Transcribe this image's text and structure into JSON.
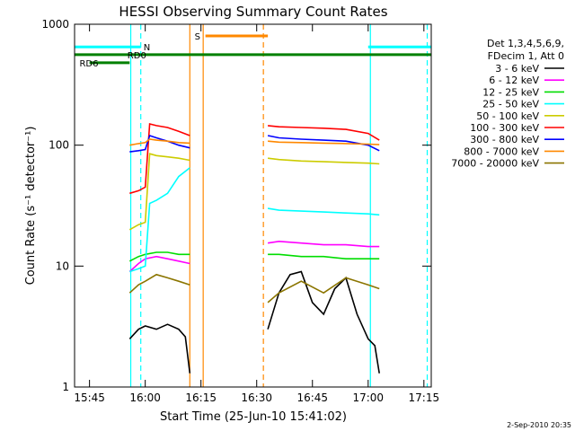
{
  "chart_data": {
    "type": "line",
    "title": "HESSI Observing Summary Count Rates",
    "xlabel": "Start Time (25-Jun-10 15:41:02)",
    "ylabel": "Count Rate (s⁻¹ detector⁻¹)",
    "yscale": "log",
    "ylim": [
      1,
      1000
    ],
    "xlim_minutes": [
      15.683,
      17.283
    ],
    "x_unit": "decimal hours UT",
    "x_ticks": [
      {
        "label": "15:45",
        "value": 15.75
      },
      {
        "label": "16:00",
        "value": 16.0
      },
      {
        "label": "16:15",
        "value": 16.25
      },
      {
        "label": "16:30",
        "value": 16.5
      },
      {
        "label": "16:45",
        "value": 16.75
      },
      {
        "label": "17:00",
        "value": 17.0
      },
      {
        "label": "17:15",
        "value": 17.25
      }
    ],
    "y_ticks": [
      {
        "label": "1",
        "value": 1
      },
      {
        "label": "10",
        "value": 10
      },
      {
        "label": "100",
        "value": 100
      },
      {
        "label": "1000",
        "value": 1000
      }
    ],
    "legend_header": [
      "Det 1,3,4,5,6,9,",
      "FDecim 1, Att 0"
    ],
    "legend_position": "right",
    "date_stamp": "2-Sep-2010 20:35",
    "series": [
      {
        "name": "3 - 6 keV",
        "color": "#000000",
        "segments": [
          {
            "x": [
              15.93,
              15.97,
              16.0,
              16.05,
              16.1,
              16.15,
              16.18,
              16.2
            ],
            "y": [
              2.5,
              3.0,
              3.2,
              3.0,
              3.3,
              3.0,
              2.6,
              1.3
            ]
          },
          {
            "x": [
              16.55,
              16.6,
              16.65,
              16.7,
              16.75,
              16.8,
              16.85,
              16.9,
              16.95,
              17.0,
              17.03,
              17.05
            ],
            "y": [
              3.0,
              6.0,
              8.5,
              9.0,
              5.0,
              4.0,
              6.5,
              8.0,
              4.0,
              2.5,
              2.2,
              1.3
            ]
          }
        ]
      },
      {
        "name": "6 - 12 keV",
        "color": "#ff00ff",
        "segments": [
          {
            "x": [
              15.93,
              15.97,
              16.0,
              16.05,
              16.1,
              16.15,
              16.2
            ],
            "y": [
              9.0,
              10.5,
              11.5,
              12.0,
              11.5,
              11.0,
              10.5
            ]
          },
          {
            "x": [
              16.55,
              16.6,
              16.7,
              16.8,
              16.9,
              17.0,
              17.05
            ],
            "y": [
              15.5,
              16.0,
              15.5,
              15.0,
              15.0,
              14.5,
              14.5
            ]
          }
        ]
      },
      {
        "name": "12 - 25 keV",
        "color": "#00dd00",
        "segments": [
          {
            "x": [
              15.93,
              15.97,
              16.0,
              16.05,
              16.1,
              16.15,
              16.2
            ],
            "y": [
              11.0,
              12.0,
              12.5,
              13.0,
              13.0,
              12.5,
              12.5
            ]
          },
          {
            "x": [
              16.55,
              16.6,
              16.7,
              16.8,
              16.9,
              17.0,
              17.05
            ],
            "y": [
              12.5,
              12.5,
              12.0,
              12.0,
              11.5,
              11.5,
              11.5
            ]
          }
        ]
      },
      {
        "name": "25 - 50 keV",
        "color": "#00ffff",
        "segments": [
          {
            "x": [
              15.93,
              15.97,
              16.0,
              16.02,
              16.05,
              16.1,
              16.15,
              16.2
            ],
            "y": [
              9.0,
              9.5,
              10.0,
              33.0,
              35.0,
              40.0,
              55.0,
              65.0
            ]
          },
          {
            "x": [
              16.55,
              16.6,
              16.7,
              16.8,
              16.9,
              17.0,
              17.05
            ],
            "y": [
              30.0,
              29.0,
              28.5,
              28.0,
              27.5,
              27.0,
              26.5
            ]
          }
        ]
      },
      {
        "name": "50 - 100 keV",
        "color": "#cccc00",
        "segments": [
          {
            "x": [
              15.93,
              15.97,
              16.0,
              16.02,
              16.05,
              16.1,
              16.15,
              16.2
            ],
            "y": [
              20.0,
              22.0,
              23.0,
              85.0,
              82.0,
              80.0,
              78.0,
              75.0
            ]
          },
          {
            "x": [
              16.55,
              16.6,
              16.7,
              16.8,
              16.9,
              17.0,
              17.05
            ],
            "y": [
              78.0,
              76.0,
              74.0,
              73.0,
              72.0,
              71.0,
              70.0
            ]
          }
        ]
      },
      {
        "name": "100 - 300 keV",
        "color": "#ff0000",
        "segments": [
          {
            "x": [
              15.93,
              15.97,
              16.0,
              16.02,
              16.05,
              16.1,
              16.15,
              16.2
            ],
            "y": [
              40.0,
              42.0,
              45.0,
              150.0,
              145.0,
              140.0,
              130.0,
              120.0
            ]
          },
          {
            "x": [
              16.55,
              16.6,
              16.7,
              16.8,
              16.9,
              17.0,
              17.05
            ],
            "y": [
              145.0,
              142.0,
              140.0,
              138.0,
              135.0,
              125.0,
              110.0
            ]
          }
        ]
      },
      {
        "name": "300 - 800 keV",
        "color": "#0000ff",
        "segments": [
          {
            "x": [
              15.93,
              15.97,
              16.0,
              16.02,
              16.05,
              16.1,
              16.15,
              16.2
            ],
            "y": [
              88.0,
              90.0,
              92.0,
              120.0,
              115.0,
              108.0,
              100.0,
              95.0
            ]
          },
          {
            "x": [
              16.55,
              16.6,
              16.7,
              16.8,
              16.9,
              17.0,
              17.05
            ],
            "y": [
              120.0,
              115.0,
              112.0,
              110.0,
              108.0,
              100.0,
              90.0
            ]
          }
        ]
      },
      {
        "name": "800 - 7000 keV",
        "color": "#ff8800",
        "segments": [
          {
            "x": [
              15.93,
              15.97,
              16.0,
              16.02,
              16.05,
              16.1,
              16.15,
              16.2
            ],
            "y": [
              100.0,
              103.0,
              105.0,
              112.0,
              110.0,
              108.0,
              105.0,
              104.0
            ]
          },
          {
            "x": [
              16.55,
              16.6,
              16.7,
              16.8,
              16.9,
              17.0,
              17.05
            ],
            "y": [
              108.0,
              106.0,
              105.0,
              104.0,
              103.0,
              102.0,
              101.0
            ]
          }
        ]
      },
      {
        "name": "7000 - 20000 keV",
        "color": "#8b7500",
        "segments": [
          {
            "x": [
              15.93,
              15.97,
              16.0,
              16.05,
              16.1,
              16.15,
              16.2
            ],
            "y": [
              6.0,
              7.0,
              7.5,
              8.5,
              8.0,
              7.5,
              7.0
            ]
          },
          {
            "x": [
              16.55,
              16.6,
              16.7,
              16.8,
              16.9,
              17.0,
              17.05
            ],
            "y": [
              5.0,
              6.0,
              7.5,
              6.0,
              8.0,
              7.0,
              6.5
            ]
          }
        ]
      }
    ],
    "flags": [
      {
        "label": "N",
        "color": "#00ffff",
        "y": 650,
        "spans": [
          [
            15.683,
            15.98
          ],
          [
            17.0,
            17.283
          ]
        ]
      },
      {
        "label": "S",
        "color": "#ff8800",
        "y": 800,
        "spans": [
          [
            16.27,
            16.55
          ]
        ]
      },
      {
        "label": "RD0",
        "color": "#008000",
        "y": 560,
        "spans": [
          [
            15.683,
            17.283
          ]
        ]
      },
      {
        "label": "RD6",
        "color": "#008000",
        "y": 480,
        "spans": [
          [
            15.75,
            15.93
          ]
        ]
      }
    ],
    "vlines": [
      {
        "x": 15.935,
        "color": "#00ffff",
        "style": "solid"
      },
      {
        "x": 15.98,
        "color": "#00ffff",
        "style": "dashed"
      },
      {
        "x": 16.2,
        "color": "#ff8800",
        "style": "solid"
      },
      {
        "x": 16.26,
        "color": "#ff8800",
        "style": "solid"
      },
      {
        "x": 16.53,
        "color": "#ff8800",
        "style": "dashed"
      },
      {
        "x": 17.01,
        "color": "#00ffff",
        "style": "solid"
      },
      {
        "x": 17.265,
        "color": "#00ffff",
        "style": "dashed"
      }
    ]
  }
}
